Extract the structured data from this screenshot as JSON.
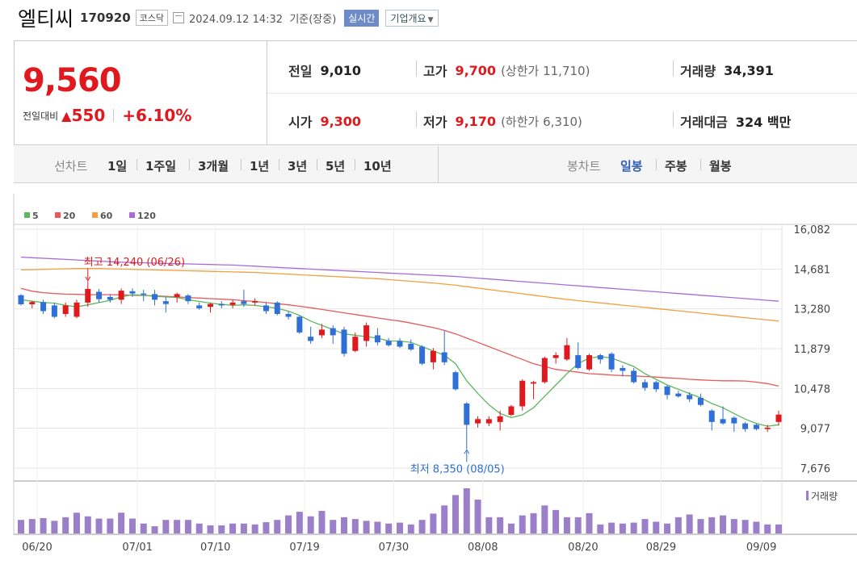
{
  "header": {
    "name": "엘티씨",
    "code": "170920",
    "market": "코스닥",
    "datetime": "2024.09.12 14:32",
    "basis": "기준(장중)",
    "realtime": "실시간",
    "corp_overview": "기업개요"
  },
  "quote": {
    "price": "9,560",
    "change_label": "전일대비",
    "change": "550",
    "change_pct": "+6.10%",
    "change_icon": "up-triangle-icon"
  },
  "stats": {
    "prev": {
      "label": "전일",
      "value": "9,010"
    },
    "high": {
      "label": "고가",
      "value": "9,700",
      "extra": "(상한가 11,710)"
    },
    "volume": {
      "label": "거래량",
      "value": "34,391"
    },
    "open": {
      "label": "시가",
      "value": "9,300"
    },
    "low": {
      "label": "저가",
      "value": "9,170",
      "extra": "(하한가 6,310)"
    },
    "amount": {
      "label": "거래대금",
      "value": "324 백만"
    }
  },
  "periods": {
    "label": "선차트",
    "items": [
      "1일",
      "1주일",
      "3개월",
      "1년",
      "3년",
      "5년",
      "10년"
    ]
  },
  "candle_tabs": {
    "label": "봉차트",
    "items": [
      "일봉",
      "주봉",
      "월봉"
    ],
    "selected": "일봉"
  },
  "colors": {
    "up": "#e0191e",
    "down": "#2f6fd6",
    "ma5": "#5cb85c",
    "ma20": "#e55a5a",
    "ma60": "#f0a040",
    "ma120": "#a66cd6",
    "volume": "#9b7fc8"
  },
  "chart_data": {
    "type": "candlestick",
    "legend": [
      "5",
      "20",
      "60",
      "120"
    ],
    "ylim": [
      7676,
      16082
    ],
    "y_ticks": [
      "16,082",
      "14,681",
      "13,280",
      "11,879",
      "10,478",
      "9,077",
      "7,676"
    ],
    "x_ticks": [
      "06/20",
      "07/01",
      "07/10",
      "07/19",
      "07/30",
      "08/08",
      "08/20",
      "08/29",
      "09/09"
    ],
    "annot_high": "최고 14,240 (06/26)",
    "annot_low": "최저 8,350 (08/05)",
    "volume_label": "거래량",
    "candles": [
      {
        "o": 13760,
        "c": 13440,
        "h": 13800,
        "l": 13400
      },
      {
        "o": 13440,
        "c": 13520,
        "h": 13560,
        "l": 13300
      },
      {
        "o": 13520,
        "c": 13200,
        "h": 13600,
        "l": 13100
      },
      {
        "o": 13400,
        "c": 13000,
        "h": 13500,
        "l": 12950
      },
      {
        "o": 13100,
        "c": 13400,
        "h": 13500,
        "l": 13000
      },
      {
        "o": 13000,
        "c": 13500,
        "h": 13600,
        "l": 12950
      },
      {
        "o": 13500,
        "c": 13980,
        "h": 14240,
        "l": 13350
      },
      {
        "o": 13880,
        "c": 13620,
        "h": 13980,
        "l": 13500
      },
      {
        "o": 13700,
        "c": 13600,
        "h": 13800,
        "l": 13500
      },
      {
        "o": 13600,
        "c": 13920,
        "h": 14000,
        "l": 13450
      },
      {
        "o": 13900,
        "c": 13820,
        "h": 14000,
        "l": 13700
      },
      {
        "o": 13820,
        "c": 13780,
        "h": 13950,
        "l": 13550
      },
      {
        "o": 13800,
        "c": 13600,
        "h": 13950,
        "l": 13400
      },
      {
        "o": 13550,
        "c": 13450,
        "h": 13700,
        "l": 13150
      },
      {
        "o": 13700,
        "c": 13800,
        "h": 13850,
        "l": 13500
      },
      {
        "o": 13750,
        "c": 13550,
        "h": 13800,
        "l": 13450
      },
      {
        "o": 13400,
        "c": 13300,
        "h": 13500,
        "l": 13250
      },
      {
        "o": 13350,
        "c": 13450,
        "h": 13500,
        "l": 13150
      },
      {
        "o": 13450,
        "c": 13400,
        "h": 13550,
        "l": 13300
      },
      {
        "o": 13420,
        "c": 13500,
        "h": 13600,
        "l": 13300
      },
      {
        "o": 13550,
        "c": 13450,
        "h": 13950,
        "l": 13350
      },
      {
        "o": 13500,
        "c": 13550,
        "h": 13650,
        "l": 13400
      },
      {
        "o": 13400,
        "c": 13200,
        "h": 13500,
        "l": 13100
      },
      {
        "o": 13500,
        "c": 13100,
        "h": 13550,
        "l": 13050
      },
      {
        "o": 13100,
        "c": 13000,
        "h": 13200,
        "l": 12900
      },
      {
        "o": 13000,
        "c": 12450,
        "h": 13050,
        "l": 12400
      },
      {
        "o": 12300,
        "c": 12150,
        "h": 12650,
        "l": 12050
      },
      {
        "o": 12350,
        "c": 12550,
        "h": 12750,
        "l": 12250
      },
      {
        "o": 12600,
        "c": 12350,
        "h": 12700,
        "l": 12050
      },
      {
        "o": 12550,
        "c": 11700,
        "h": 12650,
        "l": 11600
      },
      {
        "o": 11800,
        "c": 12300,
        "h": 12450,
        "l": 11750
      },
      {
        "o": 12150,
        "c": 12700,
        "h": 12800,
        "l": 11950
      },
      {
        "o": 12350,
        "c": 12100,
        "h": 12600,
        "l": 12000
      },
      {
        "o": 12150,
        "c": 12000,
        "h": 12250,
        "l": 11950
      },
      {
        "o": 12150,
        "c": 11950,
        "h": 12250,
        "l": 11900
      },
      {
        "o": 12050,
        "c": 11850,
        "h": 12200,
        "l": 11800
      },
      {
        "o": 11950,
        "c": 11350,
        "h": 12000,
        "l": 11300
      },
      {
        "o": 11400,
        "c": 11800,
        "h": 11900,
        "l": 11150
      },
      {
        "o": 11750,
        "c": 11400,
        "h": 12500,
        "l": 11300
      },
      {
        "o": 11050,
        "c": 10450,
        "h": 11100,
        "l": 10400
      },
      {
        "o": 9950,
        "c": 9200,
        "h": 10000,
        "l": 8350
      },
      {
        "o": 9250,
        "c": 9400,
        "h": 9500,
        "l": 9100
      },
      {
        "o": 9250,
        "c": 9400,
        "h": 9500,
        "l": 9150
      },
      {
        "o": 9300,
        "c": 9500,
        "h": 9700,
        "l": 9000
      },
      {
        "o": 9550,
        "c": 9850,
        "h": 9900,
        "l": 9500
      },
      {
        "o": 9850,
        "c": 10750,
        "h": 10800,
        "l": 9700
      },
      {
        "o": 10650,
        "c": 10700,
        "h": 10750,
        "l": 10100
      },
      {
        "o": 10700,
        "c": 11550,
        "h": 11600,
        "l": 10650
      },
      {
        "o": 11550,
        "c": 11650,
        "h": 11750,
        "l": 11350
      },
      {
        "o": 11500,
        "c": 12000,
        "h": 12250,
        "l": 11450
      },
      {
        "o": 11650,
        "c": 11200,
        "h": 12100,
        "l": 11150
      },
      {
        "o": 11150,
        "c": 11650,
        "h": 11700,
        "l": 11100
      },
      {
        "o": 11650,
        "c": 11500,
        "h": 11700,
        "l": 11350
      },
      {
        "o": 11700,
        "c": 11150,
        "h": 11750,
        "l": 11050
      },
      {
        "o": 11200,
        "c": 11100,
        "h": 11300,
        "l": 10900
      },
      {
        "o": 11100,
        "c": 10700,
        "h": 11200,
        "l": 10650
      },
      {
        "o": 10700,
        "c": 10500,
        "h": 10800,
        "l": 10400
      },
      {
        "o": 10700,
        "c": 10450,
        "h": 10750,
        "l": 10350
      },
      {
        "o": 10550,
        "c": 10250,
        "h": 10600,
        "l": 10100
      },
      {
        "o": 10300,
        "c": 10200,
        "h": 10400,
        "l": 10150
      },
      {
        "o": 10250,
        "c": 10100,
        "h": 10350,
        "l": 10000
      },
      {
        "o": 10150,
        "c": 9900,
        "h": 10300,
        "l": 9850
      },
      {
        "o": 9700,
        "c": 9300,
        "h": 9750,
        "l": 9000
      },
      {
        "o": 9400,
        "c": 9250,
        "h": 9850,
        "l": 9200
      },
      {
        "o": 9450,
        "c": 9250,
        "h": 9500,
        "l": 8950
      },
      {
        "o": 9250,
        "c": 9050,
        "h": 9300,
        "l": 8950
      },
      {
        "o": 9200,
        "c": 9050,
        "h": 9250,
        "l": 9000
      },
      {
        "o": 9050,
        "c": 9100,
        "h": 9200,
        "l": 8950
      },
      {
        "o": 9300,
        "c": 9560,
        "h": 9700,
        "l": 9170
      }
    ],
    "ma5": [
      13600,
      13550,
      13500,
      13480,
      13400,
      13350,
      13420,
      13500,
      13580,
      13700,
      13780,
      13760,
      13720,
      13700,
      13680,
      13600,
      13540,
      13480,
      13440,
      13400,
      13420,
      13400,
      13350,
      13300,
      13200,
      13050,
      12850,
      12700,
      12550,
      12400,
      12350,
      12300,
      12250,
      12150,
      12150,
      12100,
      11950,
      11800,
      11650,
      11350,
      10750,
      10300,
      9900,
      9600,
      9450,
      9550,
      9800,
      10200,
      10600,
      11000,
      11350,
      11550,
      11600,
      11550,
      11400,
      11250,
      11000,
      10800,
      10600,
      10450,
      10300,
      10150,
      9950,
      9800,
      9600,
      9400,
      9250,
      9150,
      9200
    ],
    "ma20": [
      14000,
      13900,
      13850,
      13820,
      13800,
      13790,
      13780,
      13780,
      13780,
      13770,
      13760,
      13750,
      13740,
      13720,
      13700,
      13680,
      13660,
      13640,
      13620,
      13600,
      13570,
      13540,
      13500,
      13460,
      13420,
      13370,
      13320,
      13260,
      13200,
      13140,
      13080,
      13020,
      12960,
      12900,
      12850,
      12780,
      12700,
      12620,
      12520,
      12400,
      12250,
      12100,
      11950,
      11800,
      11650,
      11500,
      11350,
      11250,
      11150,
      11100,
      11050,
      11000,
      10980,
      10950,
      10930,
      10920,
      10900,
      10880,
      10850,
      10830,
      10800,
      10780,
      10760,
      10750,
      10750,
      10740,
      10700,
      10650,
      10560
    ],
    "ma60": [
      14650,
      14660,
      14670,
      14680,
      14690,
      14700,
      14700,
      14700,
      14690,
      14680,
      14670,
      14660,
      14650,
      14640,
      14630,
      14620,
      14610,
      14600,
      14590,
      14580,
      14570,
      14560,
      14540,
      14520,
      14500,
      14480,
      14460,
      14440,
      14420,
      14400,
      14380,
      14360,
      14340,
      14310,
      14280,
      14250,
      14220,
      14190,
      14150,
      14110,
      14060,
      14010,
      13960,
      13910,
      13860,
      13810,
      13760,
      13710,
      13660,
      13610,
      13570,
      13530,
      13490,
      13450,
      13410,
      13370,
      13330,
      13290,
      13250,
      13210,
      13170,
      13130,
      13090,
      13050,
      13010,
      12970,
      12930,
      12890,
      12850
    ],
    "ma120": [
      15100,
      15080,
      15060,
      15040,
      15020,
      15000,
      14980,
      14960,
      14940,
      14920,
      14910,
      14900,
      14890,
      14880,
      14870,
      14860,
      14850,
      14840,
      14830,
      14820,
      14800,
      14780,
      14760,
      14740,
      14720,
      14700,
      14680,
      14660,
      14640,
      14620,
      14600,
      14580,
      14560,
      14540,
      14520,
      14500,
      14480,
      14460,
      14440,
      14420,
      14390,
      14360,
      14330,
      14300,
      14270,
      14240,
      14210,
      14180,
      14150,
      14120,
      14090,
      14060,
      14030,
      14000,
      13970,
      13940,
      13910,
      13880,
      13850,
      13820,
      13790,
      13760,
      13730,
      13700,
      13670,
      13640,
      13610,
      13580,
      13550
    ],
    "volumes": [
      30,
      32,
      34,
      28,
      36,
      46,
      38,
      33,
      33,
      46,
      33,
      22,
      16,
      30,
      30,
      30,
      22,
      18,
      18,
      22,
      22,
      20,
      25,
      30,
      40,
      48,
      38,
      50,
      30,
      36,
      32,
      28,
      26,
      22,
      24,
      20,
      30,
      44,
      62,
      85,
      100,
      75,
      36,
      36,
      22,
      40,
      45,
      62,
      52,
      36,
      36,
      45,
      20,
      24,
      22,
      24,
      32,
      26,
      22,
      36,
      42,
      32,
      36,
      40,
      32,
      30,
      26,
      20,
      20
    ]
  }
}
